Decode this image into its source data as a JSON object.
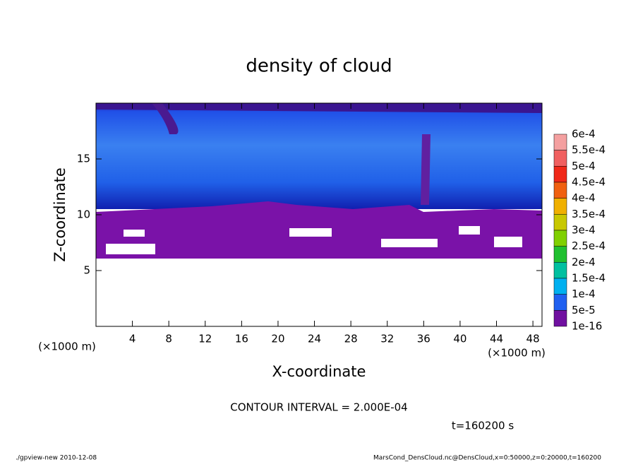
{
  "chart_data": {
    "type": "contour",
    "title": "density of cloud",
    "x_label": "X-coordinate",
    "y_label": "Z-coordinate",
    "x_unit": "(×1000 m)",
    "x_unit_right": "(×1000 m)",
    "xlim": [
      0,
      49
    ],
    "xticks": [
      4,
      8,
      12,
      16,
      20,
      24,
      28,
      32,
      36,
      40,
      44,
      48
    ],
    "ylim": [
      0,
      20
    ],
    "yticks": [
      5,
      10,
      15
    ],
    "levels": [
      {
        "value": 0.0006,
        "label": "6e-4"
      },
      {
        "value": 0.00055,
        "label": "5.5e-4"
      },
      {
        "value": 0.0005,
        "label": "5e-4"
      },
      {
        "value": 0.00045,
        "label": "4.5e-4"
      },
      {
        "value": 0.0004,
        "label": "4e-4"
      },
      {
        "value": 0.00035,
        "label": "3.5e-4"
      },
      {
        "value": 0.0003,
        "label": "3e-4"
      },
      {
        "value": 0.00025,
        "label": "2.5e-4"
      },
      {
        "value": 0.0002,
        "label": "2e-4"
      },
      {
        "value": 0.00015,
        "label": "1.5e-4"
      },
      {
        "value": 0.0001,
        "label": "1e-4"
      },
      {
        "value": 5e-05,
        "label": "5e-5"
      },
      {
        "value": 1e-16,
        "label": "1e-16"
      }
    ],
    "level_colors": [
      "#f4a0a0",
      "#f06060",
      "#f02818",
      "#f06010",
      "#f0b000",
      "#c8c800",
      "#80d000",
      "#20c030",
      "#00c0a0",
      "#00b0f0",
      "#2060f0",
      "#7010a0"
    ],
    "contour_interval": "CONTOUR INTERVAL = 2.000E-04",
    "time_label": "t=160200 s",
    "footer_left": "./gpview-new  2010-12-08",
    "footer_right": "MarsCond_DensCloud.nc@DensCloud,x=0:50000,z=0:20000,t=160200"
  }
}
